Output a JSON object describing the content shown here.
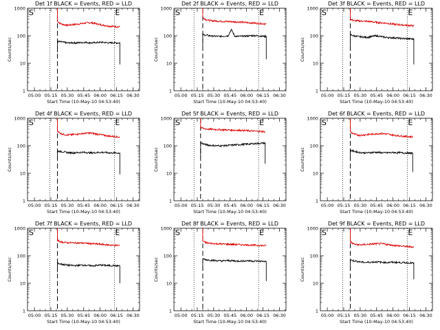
{
  "colors": {
    "events": "#000000",
    "lld": "#dd0000",
    "axis": "#000000",
    "background": "#ffffff"
  },
  "common": {
    "ylabel": "Counts/sec",
    "xlabel": "Start Time (10-May-10 04:53:40)",
    "yscale": "log",
    "ylim": [
      1,
      1000
    ],
    "ytick_values": [
      1,
      10,
      100,
      1000
    ],
    "ytick_labels": [
      "1",
      "10",
      "100",
      "1000"
    ],
    "xlim": [
      "04:53:40",
      "06:36:00"
    ],
    "xtick_values": [
      "05:00",
      "05:15",
      "05:30",
      "05:45",
      "06:00",
      "06:15",
      "06:30"
    ],
    "xtick_labels": [
      "05:00",
      "05:15",
      "05:30",
      "05:45",
      "06:00",
      "06:15",
      "06:30"
    ],
    "start_label": "S",
    "end_label": "E"
  },
  "chart_data": [
    {
      "type": "line",
      "title": "Det 1f BLACK = Events, RED = LLD",
      "dotted_lines": [
        "05:14",
        "06:13"
      ],
      "dashed_line": "05:21",
      "end_time": "06:18",
      "series": [
        {
          "color": "lld",
          "start_value": 1000,
          "values": [
            330,
            275,
            255,
            240,
            248,
            255,
            262,
            270,
            280,
            290,
            300,
            295,
            280,
            265,
            250,
            240,
            228,
            222,
            218,
            215,
            210
          ]
        },
        {
          "color": "events",
          "start_value": 25,
          "values": [
            62,
            60,
            58,
            55,
            55,
            56,
            55,
            56,
            57,
            58,
            56,
            55,
            56,
            57,
            58,
            57,
            56,
            55,
            56,
            55,
            55
          ],
          "end_value": 9
        }
      ]
    },
    {
      "type": "line",
      "title": "Det 2f BLACK = Events, RED = LLD",
      "dotted_lines": [
        "05:12",
        "06:11"
      ],
      "dashed_line": "05:20",
      "end_time": "06:18",
      "series": [
        {
          "color": "lld",
          "start_value": 1000,
          "values": [
            460,
            390,
            360,
            350,
            345,
            340,
            335,
            330,
            330,
            325,
            320,
            320,
            315,
            305,
            300,
            295,
            290,
            285,
            280,
            275,
            270
          ]
        },
        {
          "color": "events",
          "start_value": 40,
          "values": [
            110,
            105,
            100,
            98,
            96,
            95,
            96,
            98,
            100,
            165,
            98,
            95,
            96,
            97,
            98,
            100,
            102,
            100,
            98,
            96,
            95
          ],
          "end_value": 14
        }
      ]
    },
    {
      "type": "line",
      "title": "Det 3f BLACK = Events, RED = LLD",
      "dotted_lines": [
        "05:14",
        "06:13"
      ],
      "dashed_line": "05:21",
      "end_time": "06:19",
      "series": [
        {
          "color": "lld",
          "start_value": 1000,
          "values": [
            400,
            360,
            350,
            345,
            340,
            335,
            330,
            320,
            310,
            300,
            295,
            290,
            280,
            270,
            260,
            255,
            250,
            245,
            240,
            235,
            230
          ]
        },
        {
          "color": "events",
          "start_value": 30,
          "values": [
            110,
            100,
            95,
            92,
            90,
            88,
            90,
            95,
            100,
            96,
            92,
            88,
            86,
            85,
            84,
            82,
            80,
            79,
            78,
            77,
            76
          ],
          "end_value": 9
        }
      ]
    },
    {
      "type": "line",
      "title": "Det 4f BLACK = Events, RED = LLD",
      "dotted_lines": [
        "05:14",
        "06:13"
      ],
      "dashed_line": "05:21",
      "end_time": "06:18",
      "series": [
        {
          "color": "lld",
          "start_value": 1000,
          "values": [
            340,
            280,
            260,
            245,
            250,
            255,
            262,
            270,
            278,
            285,
            290,
            285,
            275,
            262,
            250,
            240,
            230,
            222,
            218,
            212,
            205
          ]
        },
        {
          "color": "events",
          "start_value": 30,
          "values": [
            64,
            62,
            60,
            57,
            56,
            55,
            56,
            57,
            58,
            57,
            56,
            55,
            56,
            57,
            58,
            57,
            56,
            55,
            55,
            55,
            54
          ],
          "end_value": 9
        }
      ]
    },
    {
      "type": "line",
      "title": "Det 5f BLACK = Events, RED = LLD",
      "dotted_lines": [
        "05:12",
        "06:11"
      ],
      "dashed_line": "05:18",
      "end_time": "06:17",
      "series": [
        {
          "color": "lld",
          "start_value": 1000,
          "values": [
            460,
            420,
            405,
            400,
            395,
            390,
            385,
            380,
            378,
            375,
            370,
            368,
            365,
            360,
            355,
            350,
            345,
            340,
            335,
            330,
            325
          ]
        },
        {
          "color": "events",
          "start_value": 40,
          "values": [
            130,
            115,
            108,
            104,
            102,
            100,
            100,
            101,
            102,
            104,
            106,
            108,
            110,
            112,
            114,
            116,
            118,
            120,
            122,
            124,
            126
          ],
          "end_value": 22
        }
      ]
    },
    {
      "type": "line",
      "title": "Det 6f BLACK = Events, RED = LLD",
      "dotted_lines": [
        "05:14",
        "06:13"
      ],
      "dashed_line": "05:21",
      "end_time": "06:18",
      "series": [
        {
          "color": "lld",
          "start_value": 1000,
          "values": [
            320,
            270,
            250,
            240,
            245,
            252,
            258,
            264,
            270,
            275,
            278,
            272,
            262,
            252,
            242,
            235,
            228,
            222,
            218,
            214,
            210
          ]
        },
        {
          "color": "events",
          "start_value": 30,
          "values": [
            68,
            64,
            60,
            57,
            56,
            55,
            56,
            57,
            58,
            57,
            56,
            55,
            56,
            56,
            57,
            56,
            56,
            55,
            55,
            54,
            54
          ],
          "end_value": 11
        }
      ]
    },
    {
      "type": "line",
      "title": "Det 7f BLACK = Events, RED = LLD",
      "dotted_lines": [
        "05:14",
        "06:13"
      ],
      "dashed_line": "05:21",
      "end_time": "06:18",
      "series": [
        {
          "color": "lld",
          "start_value": 1000,
          "values": [
            360,
            320,
            310,
            300,
            298,
            296,
            294,
            292,
            290,
            285,
            280,
            275,
            270,
            265,
            260,
            255,
            250,
            245,
            240,
            238,
            236
          ]
        },
        {
          "color": "events",
          "start_value": 25,
          "values": [
            54,
            50,
            48,
            46,
            45,
            44,
            44,
            45,
            46,
            45,
            44,
            43,
            44,
            45,
            46,
            45,
            44,
            44,
            44,
            43,
            43
          ],
          "end_value": 10
        }
      ]
    },
    {
      "type": "line",
      "title": "Det 8f BLACK = Events, RED = LLD",
      "dotted_lines": [
        "05:12",
        "06:11"
      ],
      "dashed_line": "05:20",
      "end_time": "06:18",
      "series": [
        {
          "color": "lld",
          "start_value": 1000,
          "values": [
            340,
            300,
            285,
            280,
            275,
            270,
            268,
            265,
            262,
            260,
            258,
            255,
            252,
            250,
            248,
            245,
            242,
            240,
            238,
            235,
            232
          ]
        },
        {
          "color": "events",
          "start_value": 30,
          "values": [
            78,
            72,
            70,
            68,
            67,
            66,
            65,
            66,
            67,
            66,
            65,
            64,
            64,
            65,
            66,
            65,
            64,
            64,
            63,
            63,
            62
          ],
          "end_value": 12
        }
      ]
    },
    {
      "type": "line",
      "title": "Det 9f BLACK = Events, RED = LLD",
      "dotted_lines": [
        "05:14",
        "06:13"
      ],
      "dashed_line": "05:21",
      "end_time": "06:19",
      "series": [
        {
          "color": "lld",
          "start_value": 1000,
          "values": [
            320,
            270,
            255,
            248,
            252,
            258,
            262,
            268,
            272,
            275,
            272,
            265,
            255,
            245,
            238,
            230,
            225,
            220,
            215,
            212,
            208
          ]
        },
        {
          "color": "events",
          "start_value": 30,
          "values": [
            70,
            66,
            63,
            60,
            58,
            57,
            58,
            59,
            60,
            59,
            58,
            57,
            57,
            58,
            58,
            57,
            56,
            56,
            55,
            55,
            54
          ],
          "end_value": 14
        }
      ]
    }
  ]
}
